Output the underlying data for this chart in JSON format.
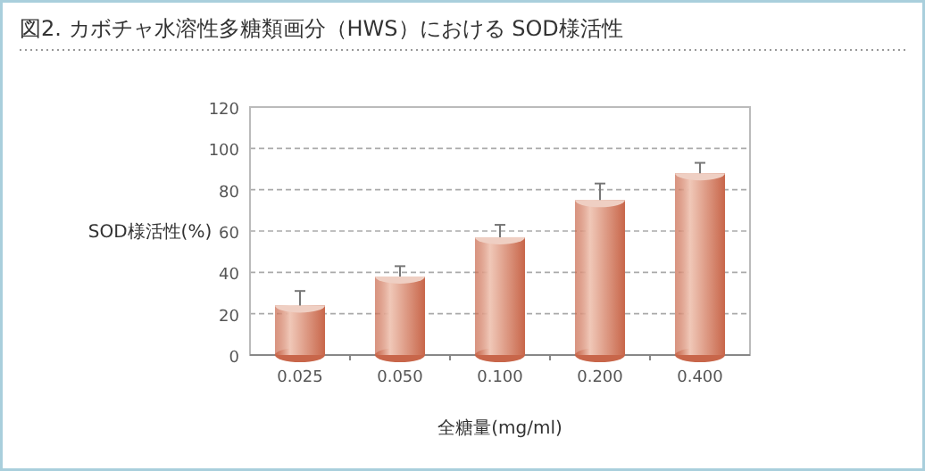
{
  "chart_data": {
    "type": "bar",
    "title": "図2. カボチャ水溶性多糖類画分（HWS）における SOD様活性",
    "xlabel": "全糖量(mg/ml)",
    "ylabel": "SOD様活性(%)",
    "categories": [
      "0.025",
      "0.050",
      "0.100",
      "0.200",
      "0.400"
    ],
    "values": [
      24,
      38,
      57,
      75,
      88
    ],
    "errors": [
      [
        24,
        31
      ],
      [
        38,
        43
      ],
      [
        57,
        63
      ],
      [
        75,
        83
      ],
      [
        88,
        93
      ]
    ],
    "color": "#c8664a",
    "ylim": [
      0,
      120
    ],
    "yticks": [
      0,
      20,
      40,
      60,
      80,
      100,
      120
    ],
    "grid": "y"
  }
}
